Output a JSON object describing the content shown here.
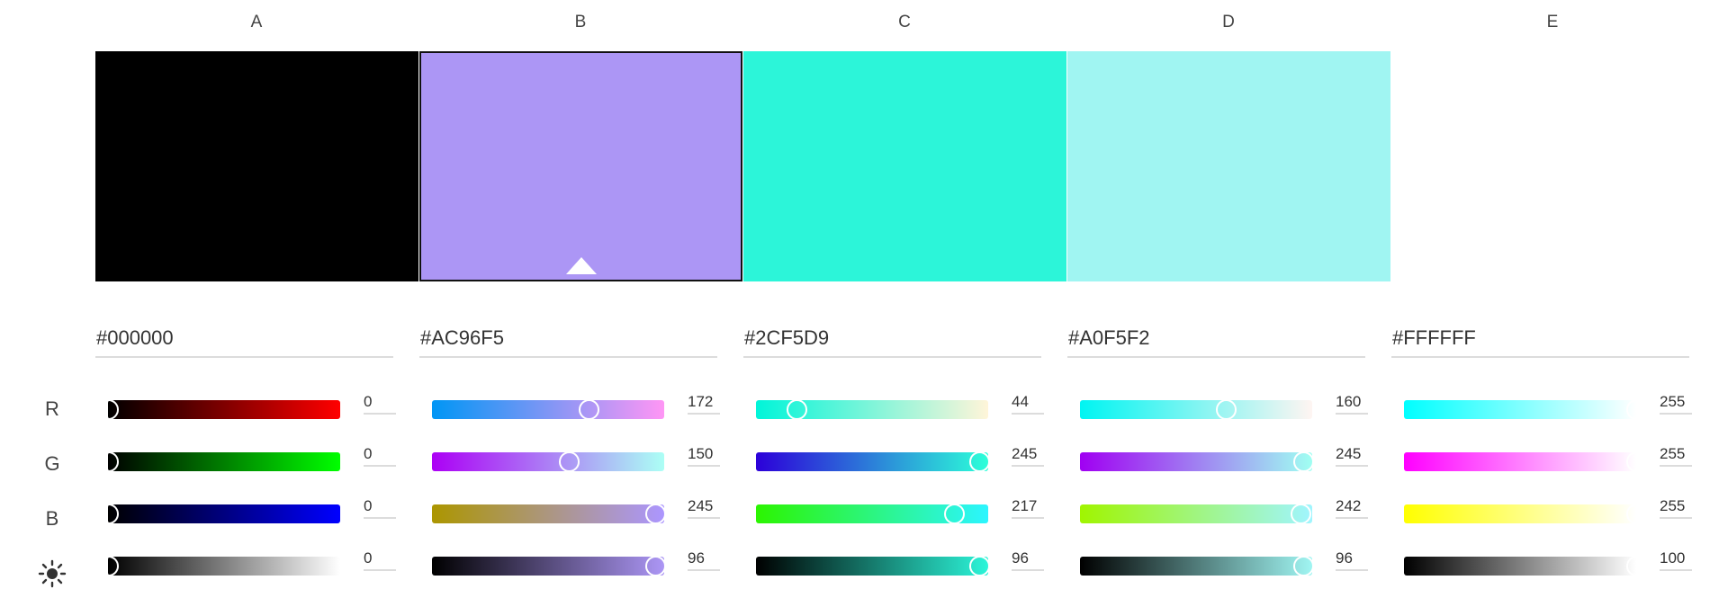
{
  "columns": [
    {
      "letter": "A",
      "hex": "#000000",
      "color": "#000000",
      "selected": false,
      "r": "0",
      "g": "0",
      "b": "0",
      "brightness": "0",
      "levels": {
        "r": 0,
        "g": 0,
        "b": 0,
        "brightness": 0
      },
      "gradients": {
        "r": [
          "#000000",
          "#ff0000"
        ],
        "g": [
          "#000000",
          "#00ff00"
        ],
        "b": [
          "#000000",
          "#0000ff"
        ],
        "brightness": [
          "#000000",
          "#ffffff"
        ]
      }
    },
    {
      "letter": "B",
      "hex": "#AC96F5",
      "color": "#AC96F5",
      "selected": true,
      "r": "172",
      "g": "150",
      "b": "245",
      "brightness": "96",
      "levels": {
        "r": 0.675,
        "g": 0.588,
        "b": 0.961,
        "brightness": 0.96
      },
      "gradients": {
        "r": [
          "#0096f5",
          "#ff96f5"
        ],
        "g": [
          "#ac00f5",
          "#acfff5"
        ],
        "b": [
          "#ac9600",
          "#ac96ff"
        ],
        "brightness": [
          "#000000",
          "#ac96f5"
        ]
      }
    },
    {
      "letter": "C",
      "hex": "#2CF5D9",
      "color": "#2CF5D9",
      "selected": false,
      "r": "44",
      "g": "245",
      "b": "217",
      "brightness": "96",
      "levels": {
        "r": 0.173,
        "g": 0.961,
        "b": 0.851,
        "brightness": 0.96
      },
      "gradients": {
        "r": [
          "#00f5d9",
          "#fff5d9"
        ],
        "g": [
          "#2c00d9",
          "#2cffd9"
        ],
        "b": [
          "#2cf500",
          "#2cf5ff"
        ],
        "brightness": [
          "#000000",
          "#2cf5d9"
        ]
      }
    },
    {
      "letter": "D",
      "hex": "#A0F5F2",
      "color": "#A0F5F2",
      "selected": false,
      "r": "160",
      "g": "245",
      "b": "242",
      "brightness": "96",
      "levels": {
        "r": 0.627,
        "g": 0.961,
        "b": 0.949,
        "brightness": 0.96
      },
      "gradients": {
        "r": [
          "#00f5f2",
          "#fff5f2"
        ],
        "g": [
          "#a000f2",
          "#a0fff2"
        ],
        "b": [
          "#a0f500",
          "#a0f5ff"
        ],
        "brightness": [
          "#000000",
          "#a0f5f2"
        ]
      }
    },
    {
      "letter": "E",
      "hex": "#FFFFFF",
      "color": "#FFFFFF",
      "selected": false,
      "r": "255",
      "g": "255",
      "b": "255",
      "brightness": "100",
      "levels": {
        "r": 1,
        "g": 1,
        "b": 1,
        "brightness": 1
      },
      "gradients": {
        "r": [
          "#00ffff",
          "#ffffff"
        ],
        "g": [
          "#ff00ff",
          "#ffffff"
        ],
        "b": [
          "#ffff00",
          "#ffffff"
        ],
        "brightness": [
          "#000000",
          "#ffffff"
        ]
      }
    }
  ],
  "row_labels": {
    "r": "R",
    "g": "G",
    "b": "B",
    "brightness_icon": "sun-icon"
  }
}
